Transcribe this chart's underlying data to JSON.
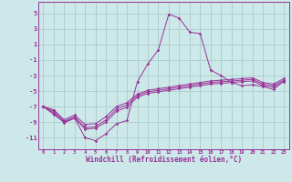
{
  "xlabel": "Windchill (Refroidissement éolien,°C)",
  "background_color": "#cce8e8",
  "grid_color": "#aacccc",
  "line_color": "#993399",
  "xlim": [
    -0.5,
    23.5
  ],
  "ylim": [
    -12.5,
    6.5
  ],
  "yticks": [
    5,
    3,
    1,
    -1,
    -3,
    -5,
    -7,
    -9,
    -11
  ],
  "xticks": [
    0,
    1,
    2,
    3,
    4,
    5,
    6,
    7,
    8,
    9,
    10,
    11,
    12,
    13,
    14,
    15,
    16,
    17,
    18,
    19,
    20,
    21,
    22,
    23
  ],
  "hours": [
    0,
    1,
    2,
    3,
    4,
    5,
    6,
    7,
    8,
    9,
    10,
    11,
    12,
    13,
    14,
    15,
    16,
    17,
    18,
    19,
    20,
    21,
    22,
    23
  ],
  "windchill": [
    -7.0,
    -8.0,
    -9.0,
    -8.5,
    -11.0,
    -11.4,
    -10.5,
    -9.2,
    -8.8,
    -3.8,
    -1.5,
    0.3,
    4.9,
    4.4,
    2.6,
    2.4,
    -2.3,
    -3.0,
    -3.9,
    -4.3,
    -4.2,
    -4.4,
    -4.8,
    -3.7
  ],
  "temp1": [
    -7.0,
    -7.4,
    -8.7,
    -8.1,
    -9.3,
    -9.2,
    -8.3,
    -7.0,
    -6.5,
    -5.4,
    -4.9,
    -4.7,
    -4.5,
    -4.3,
    -4.1,
    -3.9,
    -3.7,
    -3.6,
    -3.5,
    -3.4,
    -3.3,
    -3.9,
    -4.1,
    -3.4
  ],
  "temp2": [
    -7.0,
    -7.6,
    -8.9,
    -8.3,
    -9.7,
    -9.6,
    -8.7,
    -7.3,
    -6.8,
    -5.6,
    -5.1,
    -4.9,
    -4.7,
    -4.5,
    -4.3,
    -4.1,
    -3.9,
    -3.8,
    -3.7,
    -3.6,
    -3.5,
    -4.1,
    -4.3,
    -3.6
  ],
  "temp3": [
    -7.0,
    -7.8,
    -9.1,
    -8.5,
    -9.9,
    -9.8,
    -9.0,
    -7.6,
    -7.1,
    -5.8,
    -5.3,
    -5.1,
    -4.9,
    -4.7,
    -4.5,
    -4.3,
    -4.1,
    -4.0,
    -3.9,
    -3.8,
    -3.7,
    -4.3,
    -4.5,
    -3.8
  ]
}
